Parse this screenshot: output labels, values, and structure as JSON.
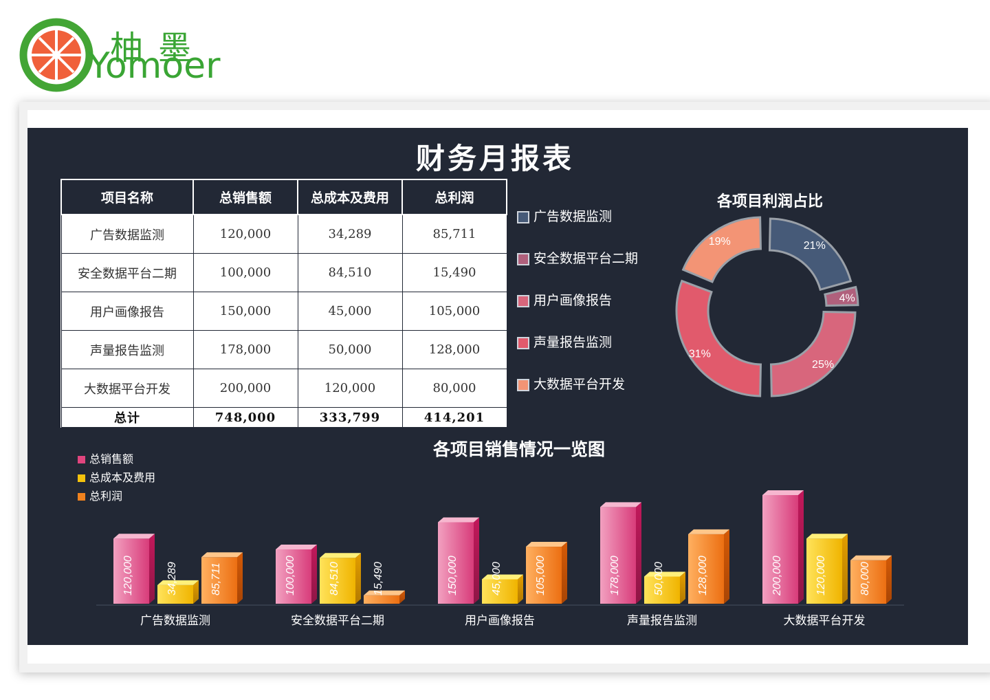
{
  "logo": {
    "cn": "柚墨",
    "en": "Yomoer"
  },
  "report": {
    "title": "财务月报表",
    "columns": [
      "项目名称",
      "总销售额",
      "总成本及费用",
      "总利润"
    ],
    "rows": [
      {
        "name": "广告数据监测",
        "sales": "120,000",
        "cost": "34,289",
        "profit": "85,711"
      },
      {
        "name": "安全数据平台二期",
        "sales": "100,000",
        "cost": "84,510",
        "profit": "15,490"
      },
      {
        "name": "用户画像报告",
        "sales": "150,000",
        "cost": "45,000",
        "profit": "105,000"
      },
      {
        "name": "声量报告监测",
        "sales": "178,000",
        "cost": "50,000",
        "profit": "128,000"
      },
      {
        "name": "大数据平台开发",
        "sales": "200,000",
        "cost": "120,000",
        "profit": "80,000"
      }
    ],
    "total": {
      "name": "总计",
      "sales": "748,000",
      "cost": "333,799",
      "profit": "414,201"
    }
  },
  "colors": {
    "panel": "#222835",
    "sales": "#e0457e",
    "cost": "#f4c20d",
    "profit": "#f0821e"
  },
  "chart_data": [
    {
      "type": "pie",
      "title": "各项目利润占比",
      "categories": [
        "广告数据监测",
        "安全数据平台二期",
        "用户画像报告",
        "声量报告监测",
        "大数据平台开发"
      ],
      "values": [
        21,
        4,
        25,
        31,
        19
      ],
      "unit": "%",
      "slice_colors": [
        "#465a78",
        "#b0607c",
        "#d8667c",
        "#e15a6c",
        "#f39475"
      ],
      "legend_placement": "left"
    },
    {
      "type": "bar",
      "title": "各项目销售情况一览图",
      "categories": [
        "广告数据监测",
        "安全数据平台二期",
        "用户画像报告",
        "声量报告监测",
        "大数据平台开发"
      ],
      "series": [
        {
          "name": "总销售额",
          "values": [
            120000,
            100000,
            150000,
            178000,
            200000
          ],
          "labels": [
            "120,000",
            "100,000",
            "150,000",
            "178,000",
            "200,000"
          ]
        },
        {
          "name": "总成本及费用",
          "values": [
            34289,
            84510,
            45000,
            50000,
            120000
          ],
          "labels": [
            "34,289",
            "84,510",
            "45,000",
            "50,000",
            "120,000"
          ]
        },
        {
          "name": "总利润",
          "values": [
            85711,
            15490,
            105000,
            128000,
            80000
          ],
          "labels": [
            "85,711",
            "15,490",
            "105,000",
            "128,000",
            "80,000"
          ]
        }
      ],
      "ylim": [
        0,
        200000
      ],
      "grid": false,
      "legend_placement": "top-left"
    }
  ]
}
